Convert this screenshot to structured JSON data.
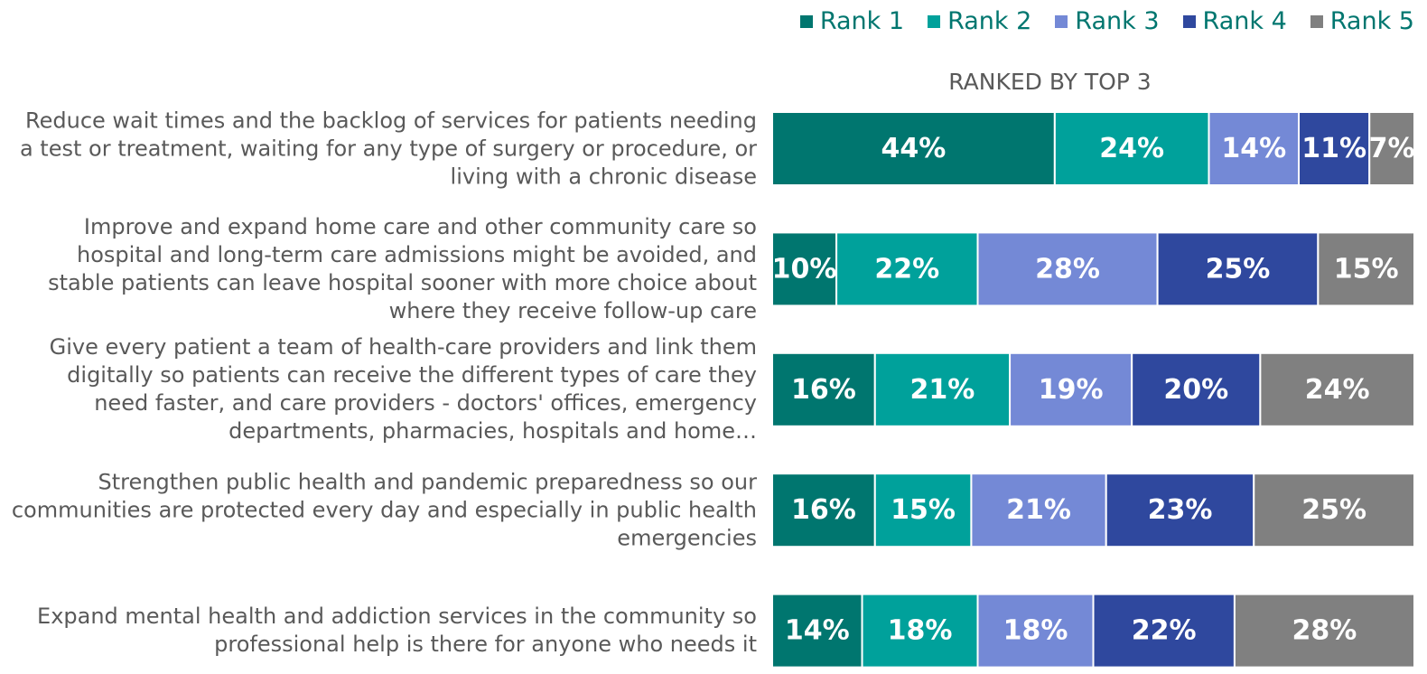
{
  "chart_data": {
    "type": "stacked_barh",
    "subtitle": "RANKED BY TOP 3",
    "categories": [
      "Reduce wait times and the backlog of services for patients needing a test or treatment, waiting for any type of surgery or procedure, or living with a chronic disease",
      "Improve and expand home care and other community care so hospital and long-term care admissions might be avoided, and stable patients can leave hospital sooner with more choice about where they receive follow-up care",
      "Give every patient a team of health-care providers and link them digitally so patients can receive the different types of care they need faster, and care providers - doctors' offices, emergency departments, pharmacies, hospitals and home…",
      "Strengthen public health and pandemic preparedness so our communities are protected every day and especially in public health emergencies",
      "Expand mental health and addiction services in the community so professional help is there for anyone who needs it"
    ],
    "series": [
      {
        "name": "Rank 1",
        "color": "#00766f",
        "values": [
          44,
          10,
          16,
          16,
          14
        ],
        "value_labels": [
          "44%",
          "10%",
          "16%",
          "16%",
          "14%"
        ]
      },
      {
        "name": "Rank 2",
        "color": "#00a19b",
        "values": [
          24,
          22,
          21,
          15,
          18
        ],
        "value_labels": [
          "24%",
          "22%",
          "21%",
          "15%",
          "18%"
        ]
      },
      {
        "name": "Rank 3",
        "color": "#7489d6",
        "values": [
          14,
          28,
          19,
          21,
          18
        ],
        "value_labels": [
          "14%",
          "28%",
          "19%",
          "21%",
          "18%"
        ]
      },
      {
        "name": "Rank 4",
        "color": "#2f489e",
        "values": [
          11,
          25,
          20,
          23,
          22
        ],
        "value_labels": [
          "11%",
          "25%",
          "20%",
          "23%",
          "22%"
        ]
      },
      {
        "name": "Rank 5",
        "color": "#808080",
        "values": [
          7,
          15,
          24,
          25,
          28
        ],
        "value_labels": [
          "7%",
          "15%",
          "24%",
          "25%",
          "28%"
        ]
      }
    ],
    "legend": "top-right"
  }
}
